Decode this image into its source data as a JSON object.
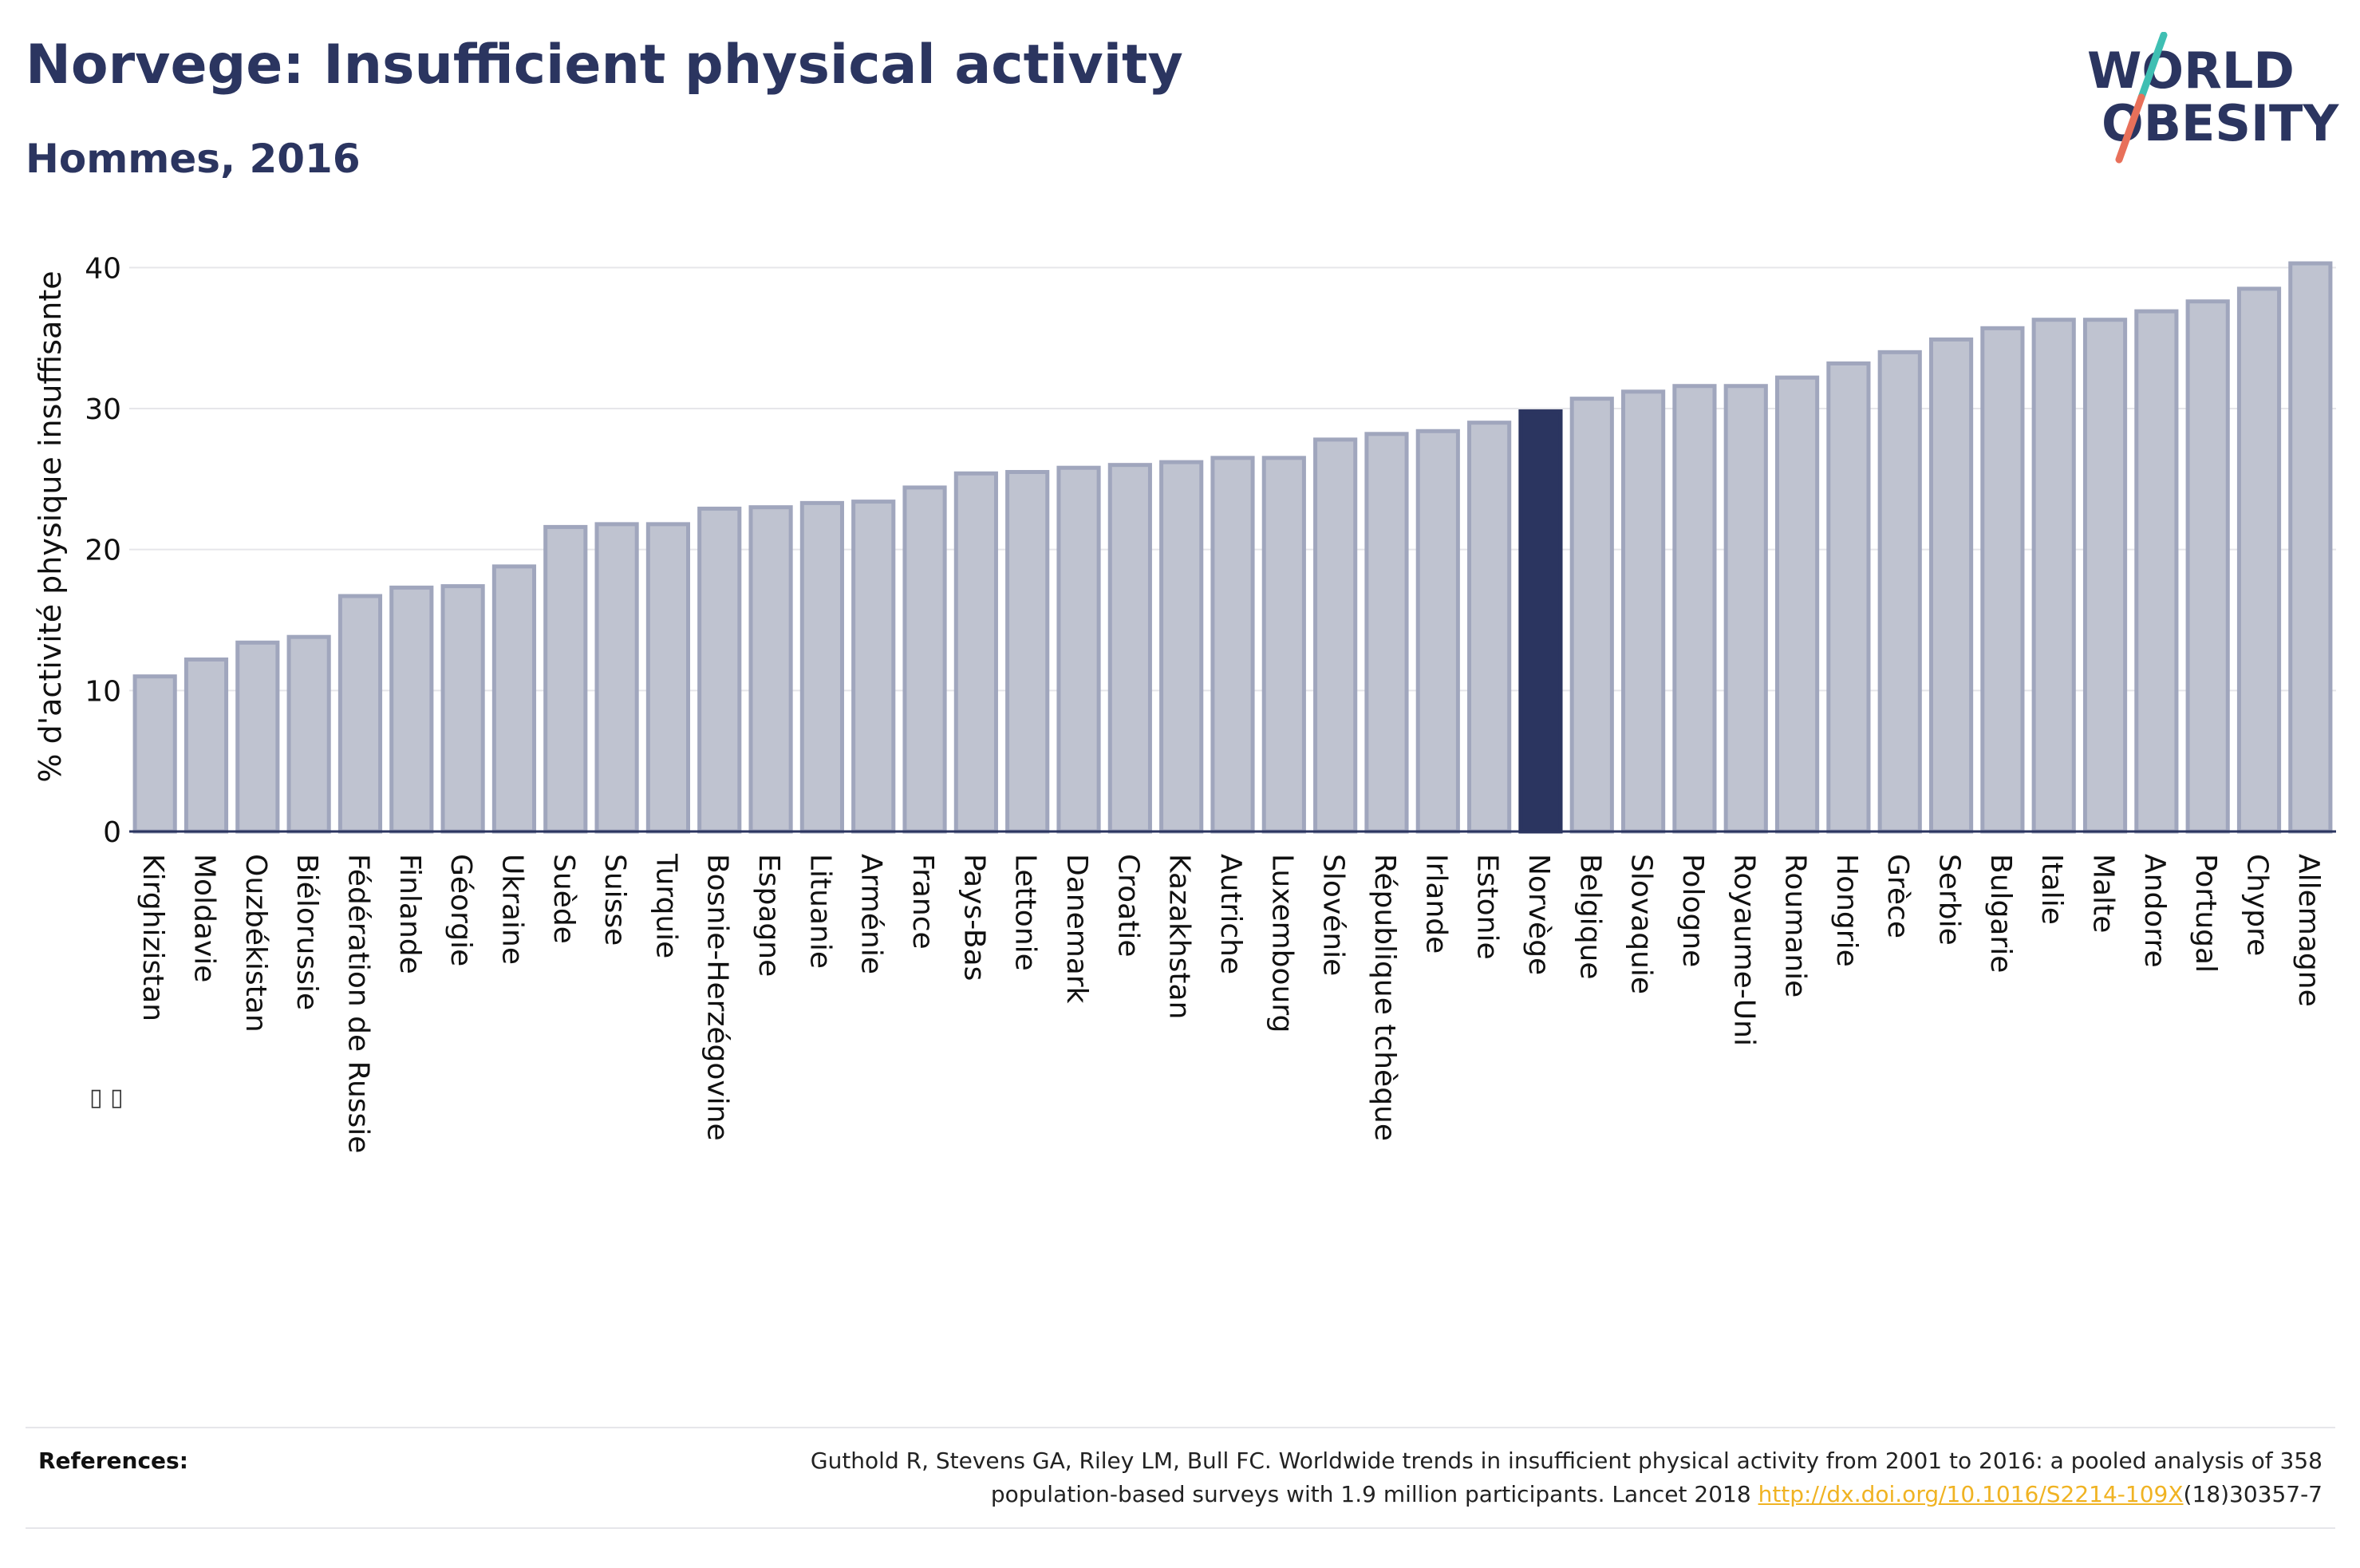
{
  "header": {
    "title": "Norvege: Insufficient physical activity",
    "subtitle": "Hommes, 2016"
  },
  "logo": {
    "line1": "WORLD",
    "line2": "OBESITY",
    "text_color": "#2b3560",
    "slash_colors": [
      "#3fbfb3",
      "#e8705a"
    ]
  },
  "references": {
    "label": "References:",
    "line1": "Guthold R, Stevens GA, Riley LM, Bull FC. Worldwide trends in insufficient physical activity from 2001 to 2016: a pooled analysis of 358",
    "line2_before": "population-based surveys with 1.9 million participants. Lancet 2018 ",
    "link_text": "http://dx.doi.org/10.1016/S2214-109X",
    "line2_after": "(18)30357-7"
  },
  "toolbar": {
    "icons_text": "▯ ▯"
  },
  "colors": {
    "bar_fill": "#bfc3d0",
    "bar_stroke": "#a0a6bd",
    "highlight": "#2b3560",
    "grid": "#e6e6ea",
    "axis": "#2b3560"
  },
  "chart_data": {
    "type": "bar",
    "title": "Norvege: Insufficient physical activity",
    "subtitle": "Hommes, 2016",
    "xlabel": "",
    "ylabel": "% d'activité physique insuffisante",
    "ylim": [
      0,
      42
    ],
    "yticks": [
      0,
      10,
      20,
      30,
      40
    ],
    "grid": true,
    "highlight_category": "Norvège",
    "categories": [
      "Kirghizistan",
      "Moldavie",
      "Ouzbékistan",
      "Biélorussie",
      "Fédération de Russie",
      "Finlande",
      "Géorgie",
      "Ukraine",
      "Suède",
      "Suisse",
      "Turquie",
      "Bosnie-Herzégovine",
      "Espagne",
      "Lituanie",
      "Arménie",
      "France",
      "Pays-Bas",
      "Lettonie",
      "Danemark",
      "Croatie",
      "Kazakhstan",
      "Autriche",
      "Luxembourg",
      "Slovénie",
      "République tchèque",
      "Irlande",
      "Estonie",
      "Norvège",
      "Belgique",
      "Slovaquie",
      "Pologne",
      "Royaume-Uni",
      "Roumanie",
      "Hongrie",
      "Grèce",
      "Serbie",
      "Bulgarie",
      "Italie",
      "Malte",
      "Andorre",
      "Portugal",
      "Chypre",
      "Allemagne"
    ],
    "values": [
      11.0,
      12.2,
      13.4,
      13.8,
      16.7,
      17.3,
      17.4,
      18.8,
      21.6,
      21.8,
      21.8,
      22.9,
      23.0,
      23.3,
      23.4,
      24.4,
      25.4,
      25.5,
      25.8,
      26.0,
      26.2,
      26.5,
      26.5,
      27.8,
      28.2,
      28.4,
      29.0,
      29.8,
      30.7,
      31.2,
      31.6,
      31.6,
      32.2,
      33.2,
      34.0,
      34.9,
      35.7,
      36.3,
      36.3,
      36.9,
      37.6,
      38.5,
      40.3
    ]
  }
}
